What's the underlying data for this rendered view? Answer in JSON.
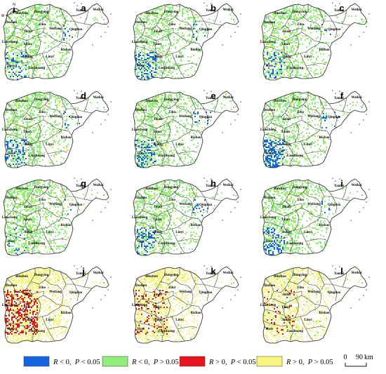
{
  "figure": {
    "compass": {
      "north": "N",
      "south": "S",
      "east": "E",
      "west": "W"
    },
    "panels": [
      {
        "letter": "a",
        "blue": 0.1,
        "green": 0.38,
        "red": 0.0,
        "yellow": 0.04
      },
      {
        "letter": "b",
        "blue": 0.14,
        "green": 0.36,
        "red": 0.0,
        "yellow": 0.03
      },
      {
        "letter": "c",
        "blue": 0.06,
        "green": 0.4,
        "red": 0.0,
        "yellow": 0.04
      },
      {
        "letter": "d",
        "blue": 0.12,
        "green": 0.38,
        "red": 0.0,
        "yellow": 0.04
      },
      {
        "letter": "e",
        "blue": 0.12,
        "green": 0.38,
        "red": 0.0,
        "yellow": 0.04
      },
      {
        "letter": "f",
        "blue": 0.2,
        "green": 0.36,
        "red": 0.0,
        "yellow": 0.03
      },
      {
        "letter": "g",
        "blue": 0.04,
        "green": 0.4,
        "red": 0.0,
        "yellow": 0.05
      },
      {
        "letter": "h",
        "blue": 0.12,
        "green": 0.38,
        "red": 0.0,
        "yellow": 0.04
      },
      {
        "letter": "i",
        "blue": 0.16,
        "green": 0.36,
        "red": 0.0,
        "yellow": 0.04
      },
      {
        "letter": "j",
        "blue": 0.0,
        "green": 0.03,
        "red": 0.22,
        "yellow": 0.5
      },
      {
        "letter": "k",
        "blue": 0.0,
        "green": 0.06,
        "red": 0.08,
        "yellow": 0.42
      },
      {
        "letter": "l",
        "blue": 0.0,
        "green": 0.08,
        "red": 0.05,
        "yellow": 0.4
      }
    ],
    "cities": [
      "Dezhou",
      "Binzhou",
      "Dongying",
      "Yantai",
      "Weihai",
      "Qingdao",
      "Weifang",
      "Zibo",
      "Jinan",
      "Liaocheng",
      "Taian",
      "Rizhao",
      "Linyi",
      "Jining",
      "Zaozhuang",
      "Heze"
    ],
    "legend": [
      {
        "symbol": "R",
        "op1": " < 0,  ",
        "p": "P",
        "op2": " < 0.05",
        "color": "#1565e0"
      },
      {
        "symbol": "R",
        "op1": " < 0,  ",
        "p": "P",
        "op2": " > 0.05",
        "color": "#90ee7a"
      },
      {
        "symbol": "R",
        "op1": " > 0,  ",
        "p": "P",
        "op2": " < 0.05",
        "color": "#e8141e"
      },
      {
        "symbol": "R",
        "op1": " > 0,  ",
        "p": "P",
        "op2": " > 0.05",
        "color": "#f8f47c"
      }
    ],
    "scalebar": {
      "zero": "0",
      "value": "90",
      "unit": "km"
    },
    "colors": {
      "blue": "#1565e0",
      "green": "#90ee7a",
      "red": "#e8141e",
      "yellow": "#f8f47c",
      "boundary": "#3a3a3a"
    }
  }
}
